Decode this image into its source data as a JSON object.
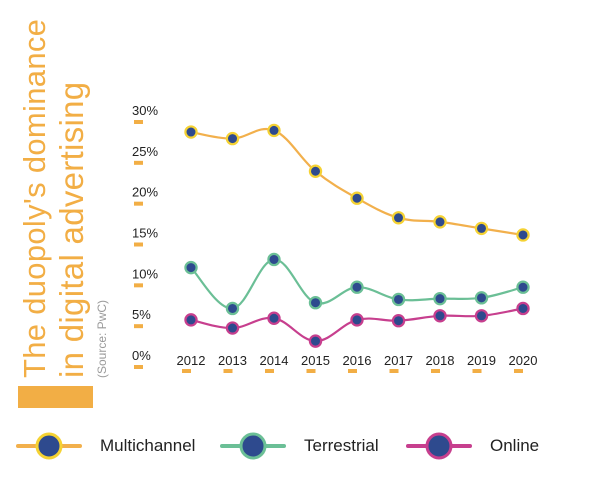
{
  "title": {
    "line1": "The duopoly's dominance",
    "line2": "in digital advertising",
    "source": "(Source: PwC)"
  },
  "colors": {
    "accent": "#F2AE45",
    "marker_fill": "#2E4A8E",
    "multichannel": "#F2B04C",
    "multichannel_ring": "#F5D233",
    "terrestrial": "#6BBF96",
    "terrestrial_ring": "#6BBF96",
    "online": "#C73F8E",
    "online_ring": "#C73F8E"
  },
  "chart_data": {
    "type": "line",
    "title": "The duopoly's dominance in digital advertising",
    "source": "(Source: PwC)",
    "x": [
      "2012",
      "2013",
      "2014",
      "2015",
      "2016",
      "2017",
      "2018",
      "2019",
      "2020"
    ],
    "y_ticks": [
      "0%",
      "5%",
      "10%",
      "15%",
      "20%",
      "25%",
      "30%"
    ],
    "ylim": [
      0,
      30
    ],
    "grid": false,
    "legend_position": "bottom",
    "series": [
      {
        "name": "Multichannel",
        "values": [
          27.3,
          26.5,
          27.5,
          22.5,
          19.2,
          16.8,
          16.3,
          15.5,
          14.7
        ]
      },
      {
        "name": "Terrestrial",
        "values": [
          10.7,
          5.7,
          11.7,
          6.4,
          8.3,
          6.8,
          6.9,
          7.0,
          8.3
        ]
      },
      {
        "name": "Online",
        "values": [
          4.3,
          3.3,
          4.5,
          1.7,
          4.3,
          4.2,
          4.8,
          4.8,
          5.7
        ]
      }
    ]
  }
}
